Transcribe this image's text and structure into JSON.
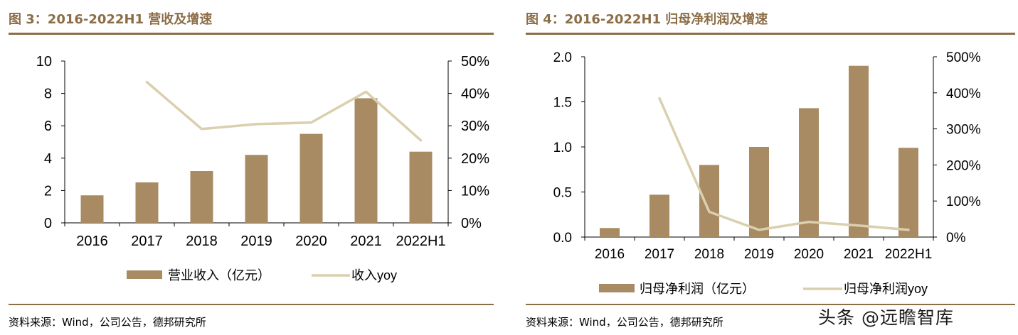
{
  "colors": {
    "bar": "#a88b63",
    "line": "#dacfae",
    "axis": "#000000",
    "title": "#8c6d46"
  },
  "watermark": "头条 @远瞻智库",
  "chart_data": [
    {
      "type": "bar",
      "figure_title": "图 3：2016-2022H1 营收及增速",
      "source": "资料来源：Wind，公司公告，德邦研究所",
      "categories": [
        "2016",
        "2017",
        "2018",
        "2019",
        "2020",
        "2021",
        "2022H1"
      ],
      "series": [
        {
          "name": "营业收入（亿元）",
          "kind": "bar",
          "axis": "left",
          "values": [
            1.7,
            2.5,
            3.2,
            4.2,
            5.5,
            7.7,
            4.4
          ]
        },
        {
          "name": "收入yoy",
          "kind": "line",
          "axis": "right",
          "values": [
            null,
            43.5,
            29,
            30.5,
            31,
            40.5,
            25.5
          ]
        }
      ],
      "ylim_left": [
        0,
        10
      ],
      "yticks_left": [
        "0",
        "2",
        "4",
        "6",
        "8",
        "10"
      ],
      "ylim_right": [
        0,
        50
      ],
      "yticks_right": [
        "0%",
        "10%",
        "20%",
        "30%",
        "40%",
        "50%"
      ],
      "legend_position": "bottom"
    },
    {
      "type": "bar",
      "figure_title": "图 4：2016-2022H1 归母净利润及增速",
      "source": "资料来源：Wind，公司公告，德邦研究所",
      "categories": [
        "2016",
        "2017",
        "2018",
        "2019",
        "2020",
        "2021",
        "2022H1"
      ],
      "series": [
        {
          "name": "归母净利润（亿元）",
          "kind": "bar",
          "axis": "left",
          "values": [
            0.1,
            0.47,
            0.8,
            1.0,
            1.43,
            1.9,
            0.99
          ]
        },
        {
          "name": "归母净利润yoy",
          "kind": "line",
          "axis": "right",
          "values": [
            null,
            385,
            70,
            20,
            42,
            32,
            20
          ]
        }
      ],
      "ylim_left": [
        0,
        2
      ],
      "yticks_left": [
        "0.0",
        "0.5",
        "1.0",
        "1.5",
        "2.0"
      ],
      "ylim_right": [
        0,
        500
      ],
      "yticks_right": [
        "0%",
        "100%",
        "200%",
        "300%",
        "400%",
        "500%"
      ],
      "legend_position": "bottom"
    }
  ]
}
